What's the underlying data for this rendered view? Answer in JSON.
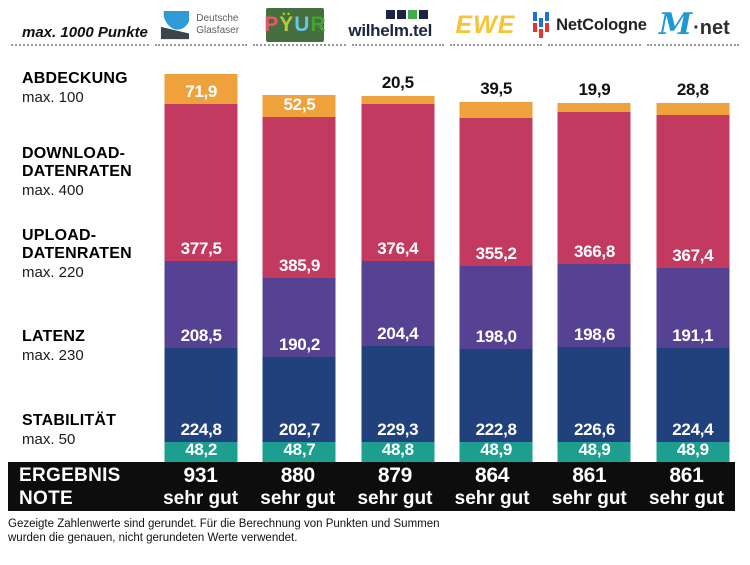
{
  "header": {
    "max_points_label": "max. 1000 Punkte",
    "logos": {
      "deutsche_glasfaser": {
        "line1": "Deutsche",
        "line2": "Glasfaser",
        "icon_blue": "#2E9BD5",
        "icon_dark": "#3C434B"
      },
      "pyur": {
        "bg": "#45703D",
        "letters": [
          "P",
          "Ÿ",
          "U",
          "R"
        ],
        "letter_colors": [
          "#E8566B",
          "#B5CC39",
          "#67C6E9",
          "#43A531"
        ]
      },
      "wilhelmtel": {
        "text": "wilhelm.tel",
        "text_color": "#1B2440",
        "squares": [
          "#1B2440",
          "#1B2440",
          "#3FAE49",
          "#1B2440"
        ]
      },
      "ewe": {
        "text": "EWE",
        "color": "#F6C437"
      },
      "netcologne": {
        "text": "NetCologne",
        "icon_blue": "#1B74D1",
        "icon_red": "#E8342C"
      },
      "mnet": {
        "m": "M",
        "rest": "·net",
        "m_color": "#1F99D6",
        "rest_color": "#2E3133"
      }
    }
  },
  "categories": [
    {
      "name_lines": [
        "ABDECKUNG"
      ],
      "max_label": "max. 100"
    },
    {
      "name_lines": [
        "DOWNLOAD-",
        "DATENRATEN"
      ],
      "max_label": "max. 400"
    },
    {
      "name_lines": [
        "UPLOAD-",
        "DATENRATEN"
      ],
      "max_label": "max. 220"
    },
    {
      "name_lines": [
        "LATENZ"
      ],
      "max_label": "max. 230"
    },
    {
      "name_lines": [
        "STABILITÄT"
      ],
      "max_label": "max. 50"
    }
  ],
  "chart_data": {
    "type": "bar",
    "stacked": true,
    "unit": "Punkte",
    "max_total": 1000,
    "categories": [
      "Deutsche Glasfaser",
      "PŸUR",
      "wilhelm.tel",
      "EWE",
      "NetCologne",
      "M-net"
    ],
    "series": [
      {
        "name": "Abdeckung",
        "max": 100,
        "color": "#EFA13C",
        "values": [
          71.9,
          52.5,
          20.5,
          39.5,
          19.9,
          28.8
        ]
      },
      {
        "name": "Download-Datenraten",
        "max": 400,
        "color": "#C23A60",
        "values": [
          377.5,
          385.9,
          376.4,
          355.2,
          366.8,
          367.4
        ]
      },
      {
        "name": "Upload-Datenraten",
        "max": 220,
        "color": "#564292",
        "values": [
          208.5,
          190.2,
          204.4,
          198.0,
          198.6,
          191.1
        ]
      },
      {
        "name": "Latenz",
        "max": 230,
        "color": "#21417D",
        "values": [
          224.8,
          202.7,
          229.3,
          222.8,
          226.6,
          224.4
        ]
      },
      {
        "name": "Stabilität",
        "max": 50,
        "color": "#1E9E8E",
        "values": [
          48.2,
          48.7,
          48.8,
          48.9,
          48.9,
          48.9
        ]
      }
    ],
    "totals": [
      931,
      880,
      879,
      864,
      861,
      861
    ],
    "grades": [
      "sehr gut",
      "sehr gut",
      "sehr gut",
      "sehr gut",
      "sehr gut",
      "sehr gut"
    ]
  },
  "results": {
    "line1": "ERGEBNIS",
    "line2": "NOTE"
  },
  "footer": {
    "line1": "Gezeigte Zahlenwerte sind gerundet. Für die Berechnung von Punkten und Summen",
    "line2": "wurden die genauen, nicht gerundeten Werte verwendet."
  }
}
